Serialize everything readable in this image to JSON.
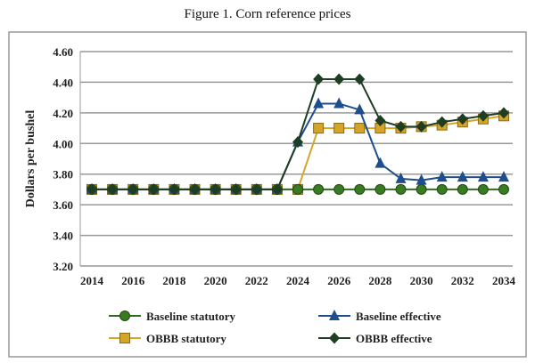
{
  "chart_data": {
    "type": "line",
    "title": "Figure 1. Corn reference prices",
    "xlabel": "",
    "ylabel": "Dollars per bushel",
    "ylim": [
      3.2,
      4.6
    ],
    "yticks": [
      "3.20",
      "3.40",
      "3.60",
      "3.80",
      "4.00",
      "4.20",
      "4.40",
      "4.60"
    ],
    "xticks": [
      "2014",
      "2016",
      "2018",
      "2020",
      "2022",
      "2024",
      "2026",
      "2028",
      "2030",
      "2032",
      "2034"
    ],
    "x": [
      2014,
      2015,
      2016,
      2017,
      2018,
      2019,
      2020,
      2021,
      2022,
      2023,
      2024,
      2025,
      2026,
      2027,
      2028,
      2029,
      2030,
      2031,
      2032,
      2033,
      2034
    ],
    "grid": true,
    "legend": "bottom",
    "series": [
      {
        "name": "Baseline statutory",
        "color": "#2e6b1e",
        "marker": "circle",
        "values": [
          3.7,
          3.7,
          3.7,
          3.7,
          3.7,
          3.7,
          3.7,
          3.7,
          3.7,
          3.7,
          3.7,
          3.7,
          3.7,
          3.7,
          3.7,
          3.7,
          3.7,
          3.7,
          3.7,
          3.7,
          3.7
        ]
      },
      {
        "name": "Baseline effective",
        "color": "#1f4e8c",
        "marker": "triangle",
        "values": [
          3.7,
          3.7,
          3.7,
          3.7,
          3.7,
          3.7,
          3.7,
          3.7,
          3.7,
          3.7,
          4.01,
          4.26,
          4.26,
          4.22,
          3.87,
          3.77,
          3.76,
          3.78,
          3.78,
          3.78,
          3.78
        ]
      },
      {
        "name": "OBBB statutory",
        "color": "#d4a52a",
        "marker": "square",
        "values": [
          3.7,
          3.7,
          3.7,
          3.7,
          3.7,
          3.7,
          3.7,
          3.7,
          3.7,
          3.7,
          3.7,
          4.1,
          4.1,
          4.1,
          4.1,
          4.1,
          4.11,
          4.12,
          4.14,
          4.16,
          4.18
        ]
      },
      {
        "name": "OBBB effective",
        "color": "#1e3d22",
        "marker": "diamond",
        "values": [
          3.7,
          3.7,
          3.7,
          3.7,
          3.7,
          3.7,
          3.7,
          3.7,
          3.7,
          3.7,
          4.01,
          4.42,
          4.42,
          4.42,
          4.15,
          4.11,
          4.11,
          4.14,
          4.16,
          4.18,
          4.2
        ]
      }
    ]
  }
}
